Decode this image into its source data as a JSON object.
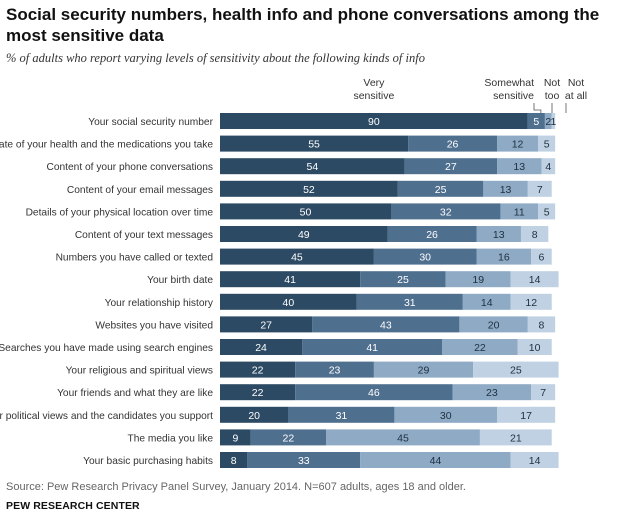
{
  "title": "Social security numbers, health info and phone conversations among the most sensitive data",
  "subtitle": "% of adults who report varying levels of sensitivity about the following kinds of info",
  "source": "Source: Pew Research Privacy Panel Survey, January 2014. N=607 adults, ages 18 and older.",
  "organization": "PEW RESEARCH CENTER",
  "colors": [
    "#2c4a63",
    "#4f6f8f",
    "#8eaac5",
    "#bfd1e2"
  ],
  "chart_data": {
    "type": "bar",
    "orientation": "horizontal",
    "stacked": true,
    "grid": false,
    "legend": "header labels above bars",
    "series_headers": [
      [
        "Very",
        "sensitive"
      ],
      [
        "Somewhat",
        "sensitive"
      ],
      [
        "Not",
        "too"
      ],
      [
        "Not",
        "at all"
      ]
    ],
    "categories": [
      "Your social security number",
      "State of your health and the medications you take",
      "Content of your phone conversations",
      "Content of your email messages",
      "Details of your physical location over time",
      "Content of your text messages",
      "Numbers you have called or texted",
      "Your birth date",
      "Your relationship history",
      "Websites you have visited",
      "Searches you have made using search engines",
      "Your religious and spiritual views",
      "Your friends and what they are like",
      "Your political views and the candidates you support",
      "The media you like",
      "Your basic purchasing habits"
    ],
    "series": [
      {
        "name": "Very sensitive",
        "values": [
          90,
          55,
          54,
          52,
          50,
          49,
          45,
          41,
          40,
          27,
          24,
          22,
          22,
          20,
          9,
          8
        ]
      },
      {
        "name": "Somewhat sensitive",
        "values": [
          5,
          26,
          27,
          25,
          32,
          26,
          30,
          25,
          31,
          43,
          41,
          23,
          46,
          31,
          22,
          33
        ]
      },
      {
        "name": "Not too",
        "values": [
          2,
          12,
          13,
          13,
          11,
          13,
          16,
          19,
          14,
          20,
          22,
          29,
          23,
          30,
          45,
          44
        ]
      },
      {
        "name": "Not at all",
        "values": [
          1,
          5,
          4,
          7,
          5,
          8,
          6,
          14,
          12,
          8,
          10,
          25,
          7,
          17,
          21,
          14
        ]
      }
    ]
  }
}
